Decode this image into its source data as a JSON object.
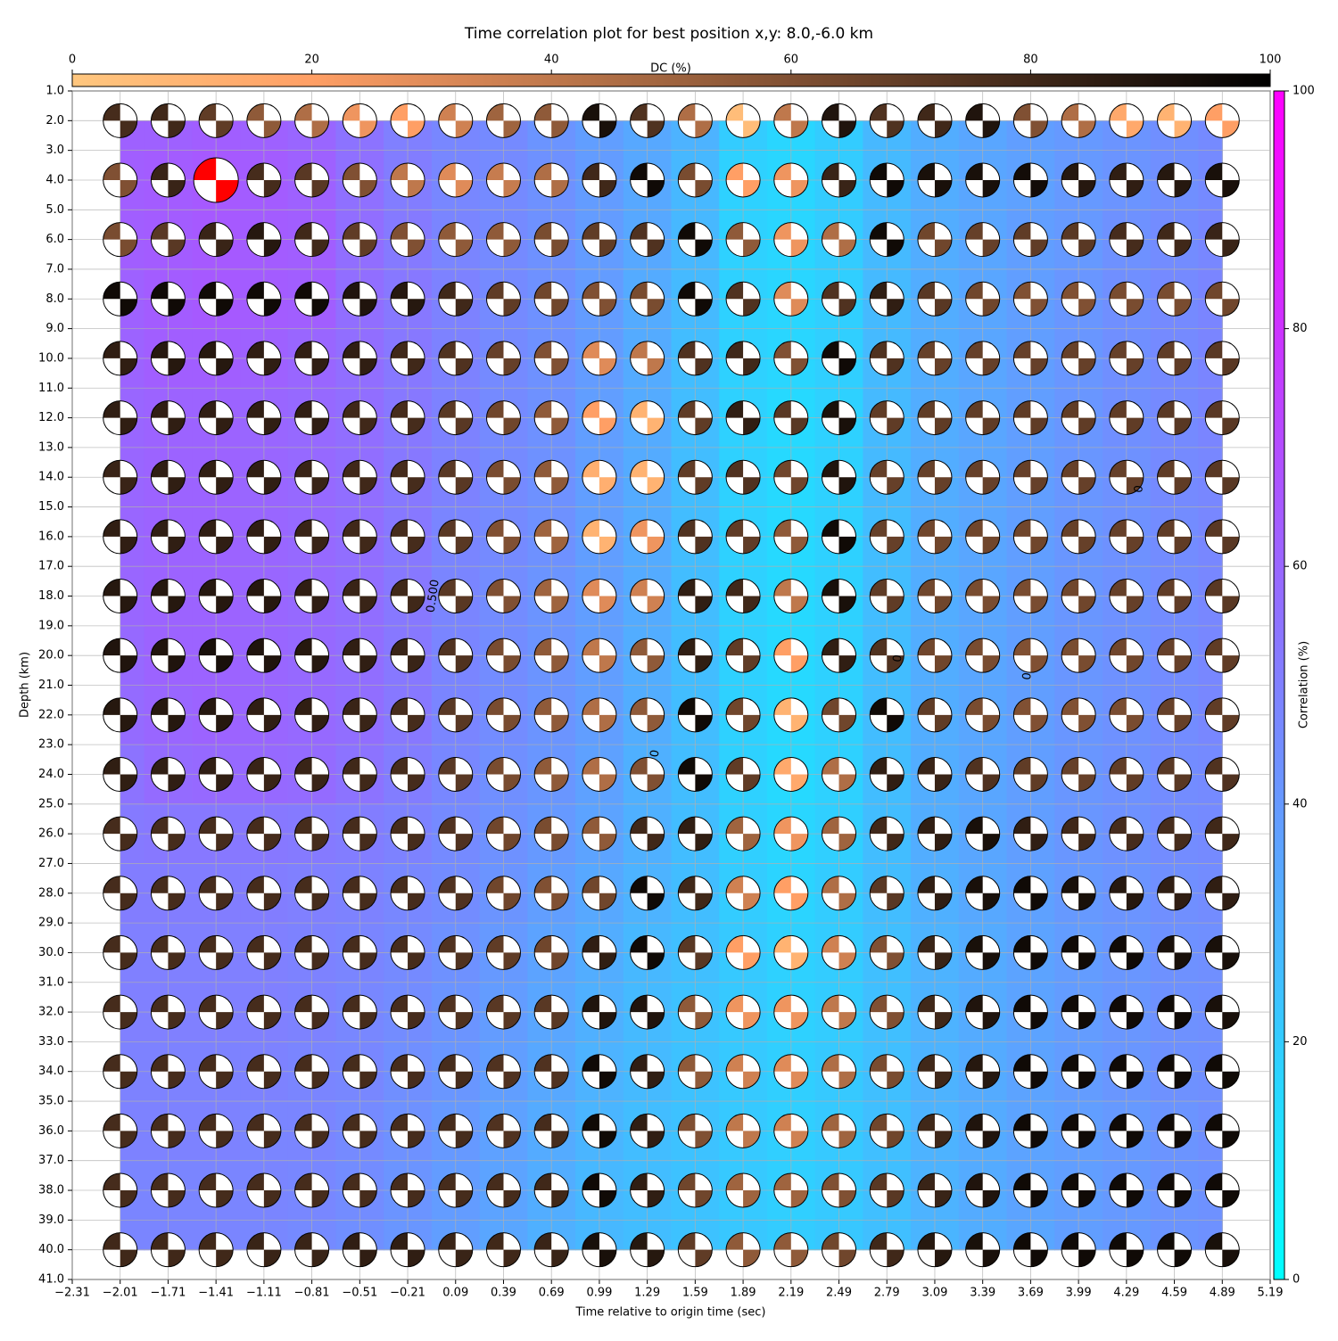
{
  "chart_data": {
    "type": "heatmap",
    "title": "Time correlation plot for best position x,y: 8.0,-6.0 km",
    "xlabel": "Time relative to origin time (sec)",
    "ylabel": "Depth (km)",
    "x": [
      -2.01,
      -1.71,
      -1.41,
      -1.11,
      -0.81,
      -0.51,
      -0.21,
      0.09,
      0.39,
      0.69,
      0.99,
      1.29,
      1.59,
      1.89,
      2.19,
      2.49,
      2.79,
      3.09,
      3.39,
      3.69,
      3.99,
      4.29,
      4.59,
      4.89
    ],
    "y": [
      2,
      4,
      6,
      8,
      10,
      12,
      14,
      16,
      18,
      20,
      22,
      24,
      26,
      28,
      30,
      32,
      34,
      36,
      38,
      40
    ],
    "correlation": [
      [
        62,
        62,
        63,
        62,
        60,
        55,
        50,
        47,
        46,
        42,
        38,
        34,
        30,
        20,
        16,
        20,
        28,
        32,
        35,
        38,
        40,
        42,
        44,
        46
      ],
      [
        63,
        64,
        65,
        64,
        62,
        56,
        51,
        47,
        46,
        43,
        39,
        34,
        28,
        18,
        16,
        20,
        27,
        32,
        35,
        37,
        40,
        42,
        44,
        46
      ],
      [
        63,
        64,
        65,
        64,
        63,
        57,
        52,
        48,
        46,
        43,
        39,
        34,
        28,
        18,
        16,
        20,
        27,
        32,
        35,
        38,
        40,
        43,
        45,
        47
      ],
      [
        62,
        64,
        65,
        64,
        63,
        57,
        53,
        49,
        46,
        43,
        39,
        33,
        27,
        18,
        16,
        19,
        27,
        32,
        35,
        38,
        41,
        44,
        46,
        48
      ],
      [
        61,
        63,
        63,
        62,
        60,
        57,
        53,
        49,
        46,
        43,
        39,
        33,
        26,
        18,
        16,
        19,
        27,
        32,
        35,
        38,
        41,
        44,
        46,
        48
      ],
      [
        60,
        61,
        61,
        60,
        59,
        57,
        53,
        49,
        46,
        43,
        38,
        33,
        26,
        18,
        15,
        18,
        27,
        32,
        35,
        38,
        41,
        44,
        46,
        48
      ],
      [
        60,
        61,
        61,
        60,
        59,
        57,
        53,
        49,
        46,
        43,
        38,
        33,
        26,
        18,
        15,
        18,
        27,
        32,
        35,
        38,
        41,
        43,
        46,
        47
      ],
      [
        60,
        61,
        61,
        60,
        59,
        57,
        53,
        48,
        46,
        43,
        38,
        33,
        26,
        18,
        15,
        18,
        26,
        32,
        35,
        38,
        41,
        43,
        45,
        47
      ],
      [
        60,
        61,
        61,
        60,
        59,
        57,
        53,
        48,
        45,
        42,
        38,
        33,
        26,
        18,
        15,
        18,
        26,
        32,
        35,
        38,
        41,
        43,
        45,
        47
      ],
      [
        59,
        61,
        61,
        60,
        59,
        57,
        53,
        48,
        45,
        42,
        38,
        32,
        26,
        18,
        15,
        18,
        26,
        32,
        35,
        38,
        41,
        43,
        45,
        47
      ],
      [
        58,
        60,
        61,
        60,
        59,
        57,
        53,
        48,
        45,
        42,
        38,
        32,
        26,
        18,
        15,
        18,
        26,
        32,
        35,
        38,
        41,
        43,
        45,
        47
      ],
      [
        55,
        58,
        59,
        59,
        58,
        55,
        51,
        47,
        44,
        41,
        37,
        31,
        26,
        18,
        15,
        18,
        26,
        32,
        35,
        38,
        41,
        43,
        45,
        46
      ],
      [
        52,
        53,
        53,
        53,
        52,
        51,
        49,
        46,
        43,
        40,
        36,
        31,
        26,
        19,
        16,
        19,
        26,
        32,
        35,
        38,
        41,
        43,
        45,
        46
      ],
      [
        51,
        51,
        51,
        51,
        50,
        49,
        47,
        45,
        42,
        38,
        34,
        30,
        26,
        20,
        17,
        20,
        26,
        31,
        34,
        37,
        40,
        42,
        44,
        45
      ],
      [
        50,
        50,
        50,
        50,
        49,
        48,
        46,
        43,
        40,
        36,
        32,
        28,
        25,
        21,
        18,
        20,
        25,
        30,
        33,
        36,
        39,
        41,
        43,
        44
      ],
      [
        50,
        50,
        50,
        50,
        49,
        47,
        45,
        42,
        39,
        35,
        31,
        27,
        24,
        21,
        18,
        20,
        25,
        30,
        33,
        36,
        39,
        41,
        43,
        44
      ],
      [
        49,
        49,
        49,
        49,
        48,
        47,
        44,
        41,
        38,
        34,
        30,
        27,
        24,
        21,
        19,
        21,
        25,
        30,
        33,
        36,
        39,
        41,
        43,
        44
      ],
      [
        49,
        49,
        49,
        48,
        48,
        46,
        43,
        40,
        37,
        33,
        29,
        26,
        24,
        21,
        19,
        21,
        25,
        30,
        33,
        36,
        38,
        40,
        42,
        44
      ],
      [
        48,
        48,
        48,
        48,
        47,
        45,
        42,
        39,
        36,
        32,
        28,
        26,
        24,
        21,
        19,
        21,
        25,
        30,
        33,
        36,
        38,
        40,
        42,
        43
      ],
      [
        48,
        48,
        48,
        47,
        46,
        44,
        41,
        38,
        35,
        31,
        28,
        26,
        24,
        22,
        20,
        22,
        25,
        29,
        32,
        35,
        38,
        40,
        42,
        43
      ]
    ],
    "dc": [
      [
        78,
        80,
        70,
        55,
        45,
        25,
        20,
        35,
        50,
        55,
        92,
        75,
        45,
        5,
        40,
        90,
        75,
        80,
        90,
        60,
        45,
        15,
        10,
        20
      ],
      [
        60,
        82,
        70,
        78,
        72,
        60,
        40,
        30,
        38,
        45,
        80,
        95,
        62,
        20,
        25,
        82,
        95,
        92,
        92,
        94,
        88,
        85,
        88,
        92
      ],
      [
        62,
        72,
        82,
        88,
        80,
        70,
        60,
        55,
        55,
        62,
        70,
        75,
        95,
        55,
        25,
        45,
        95,
        65,
        68,
        70,
        72,
        78,
        80,
        82
      ],
      [
        95,
        95,
        95,
        95,
        95,
        90,
        88,
        80,
        70,
        65,
        60,
        62,
        95,
        75,
        30,
        75,
        85,
        72,
        65,
        60,
        60,
        62,
        62,
        65
      ],
      [
        85,
        88,
        88,
        85,
        85,
        85,
        80,
        75,
        68,
        60,
        30,
        40,
        75,
        80,
        60,
        95,
        75,
        68,
        68,
        68,
        68,
        68,
        70,
        72
      ],
      [
        85,
        85,
        85,
        85,
        85,
        80,
        78,
        72,
        65,
        55,
        20,
        10,
        70,
        85,
        72,
        92,
        70,
        70,
        70,
        70,
        70,
        70,
        72,
        72
      ],
      [
        82,
        85,
        85,
        85,
        82,
        80,
        78,
        72,
        62,
        55,
        12,
        10,
        70,
        75,
        65,
        90,
        68,
        68,
        68,
        68,
        68,
        68,
        70,
        72
      ],
      [
        85,
        85,
        85,
        85,
        82,
        80,
        78,
        72,
        60,
        50,
        10,
        25,
        75,
        70,
        55,
        95,
        68,
        65,
        65,
        65,
        68,
        68,
        70,
        72
      ],
      [
        88,
        88,
        88,
        88,
        85,
        82,
        80,
        72,
        60,
        50,
        30,
        35,
        85,
        80,
        40,
        92,
        70,
        65,
        62,
        62,
        65,
        68,
        70,
        72
      ],
      [
        90,
        90,
        92,
        90,
        88,
        85,
        82,
        75,
        62,
        55,
        40,
        55,
        85,
        70,
        20,
        85,
        75,
        65,
        62,
        60,
        62,
        65,
        68,
        70
      ],
      [
        88,
        88,
        88,
        85,
        85,
        82,
        78,
        72,
        62,
        55,
        45,
        55,
        95,
        65,
        10,
        65,
        95,
        70,
        62,
        60,
        60,
        62,
        68,
        70
      ],
      [
        85,
        85,
        85,
        82,
        82,
        80,
        78,
        72,
        62,
        55,
        45,
        60,
        95,
        70,
        15,
        45,
        85,
        82,
        75,
        70,
        68,
        70,
        72,
        75
      ],
      [
        78,
        78,
        78,
        78,
        78,
        78,
        78,
        75,
        65,
        62,
        55,
        80,
        85,
        50,
        25,
        50,
        80,
        85,
        92,
        85,
        80,
        78,
        78,
        80
      ],
      [
        78,
        78,
        78,
        78,
        78,
        78,
        78,
        75,
        65,
        60,
        65,
        95,
        80,
        35,
        20,
        45,
        72,
        85,
        92,
        95,
        92,
        88,
        85,
        85
      ],
      [
        78,
        78,
        78,
        78,
        78,
        78,
        78,
        75,
        70,
        65,
        85,
        95,
        72,
        20,
        10,
        35,
        60,
        82,
        92,
        95,
        95,
        95,
        92,
        92
      ],
      [
        78,
        78,
        78,
        78,
        78,
        78,
        78,
        75,
        72,
        72,
        90,
        90,
        55,
        25,
        25,
        40,
        60,
        80,
        90,
        95,
        95,
        95,
        95,
        92
      ],
      [
        78,
        78,
        78,
        78,
        78,
        78,
        78,
        78,
        75,
        75,
        95,
        85,
        55,
        35,
        30,
        45,
        62,
        80,
        88,
        95,
        95,
        95,
        95,
        95
      ],
      [
        78,
        78,
        78,
        78,
        78,
        78,
        78,
        78,
        75,
        78,
        95,
        85,
        60,
        40,
        35,
        50,
        65,
        80,
        90,
        95,
        95,
        95,
        95,
        95
      ],
      [
        78,
        78,
        78,
        78,
        78,
        78,
        78,
        78,
        78,
        80,
        95,
        85,
        65,
        50,
        50,
        60,
        72,
        82,
        90,
        95,
        95,
        95,
        95,
        95
      ],
      [
        80,
        80,
        80,
        82,
        82,
        85,
        85,
        82,
        80,
        82,
        92,
        88,
        70,
        55,
        55,
        65,
        80,
        88,
        92,
        95,
        95,
        95,
        95,
        92
      ]
    ],
    "best": {
      "x": -1.41,
      "y": 4,
      "color": "#ff0000"
    },
    "xlim": [
      -2.31,
      5.19
    ],
    "ylim": [
      1,
      41
    ],
    "y_inverted": true,
    "xticks": [
      {
        "value": -2.31,
        "label": "−2.31"
      },
      {
        "value": -2.01,
        "label": "−2.01"
      },
      {
        "value": -1.71,
        "label": "−1.71"
      },
      {
        "value": -1.41,
        "label": "−1.41"
      },
      {
        "value": -1.11,
        "label": "−1.11"
      },
      {
        "value": -0.81,
        "label": "−0.81"
      },
      {
        "value": -0.51,
        "label": "−0.51"
      },
      {
        "value": -0.21,
        "label": "−0.21"
      },
      0.09,
      0.39,
      0.69,
      0.99,
      1.29,
      1.59,
      1.89,
      2.19,
      2.49,
      2.79,
      3.09,
      3.39,
      3.69,
      3.99,
      4.29,
      4.59,
      4.89,
      5.19
    ],
    "yticks": [
      {
        "value": 1,
        "label": "1.0"
      },
      {
        "value": 2,
        "label": "2.0"
      },
      {
        "value": 3,
        "label": "3.0"
      },
      {
        "value": 4,
        "label": "4.0"
      },
      {
        "value": 5,
        "label": "5.0"
      },
      {
        "value": 6,
        "label": "6.0"
      },
      {
        "value": 7,
        "label": "7.0"
      },
      {
        "value": 8,
        "label": "8.0"
      },
      {
        "value": 9,
        "label": "9.0"
      },
      {
        "value": 10,
        "label": "10.0"
      },
      {
        "value": 11,
        "label": "11.0"
      },
      {
        "value": 12,
        "label": "12.0"
      },
      {
        "value": 13,
        "label": "13.0"
      },
      {
        "value": 14,
        "label": "14.0"
      },
      {
        "value": 15,
        "label": "15.0"
      },
      {
        "value": 16,
        "label": "16.0"
      },
      {
        "value": 17,
        "label": "17.0"
      },
      {
        "value": 18,
        "label": "18.0"
      },
      {
        "value": 19,
        "label": "19.0"
      },
      {
        "value": 20,
        "label": "20.0"
      },
      {
        "value": 21,
        "label": "21.0"
      },
      {
        "value": 22,
        "label": "22.0"
      },
      {
        "value": 23,
        "label": "23.0"
      },
      {
        "value": 24,
        "label": "24.0"
      },
      {
        "value": 25,
        "label": "25.0"
      },
      {
        "value": 26,
        "label": "26.0"
      },
      {
        "value": 27,
        "label": "27.0"
      },
      {
        "value": 28,
        "label": "28.0"
      },
      {
        "value": 29,
        "label": "29.0"
      },
      {
        "value": 30,
        "label": "30.0"
      },
      {
        "value": 31,
        "label": "31.0"
      },
      {
        "value": 32,
        "label": "32.0"
      },
      {
        "value": 33,
        "label": "33.0"
      },
      {
        "value": 34,
        "label": "34.0"
      },
      {
        "value": 35,
        "label": "35.0"
      },
      {
        "value": 36,
        "label": "36.0"
      },
      {
        "value": 37,
        "label": "37.0"
      },
      {
        "value": 38,
        "label": "38.0"
      },
      {
        "value": 39,
        "label": "39.0"
      },
      {
        "value": 40,
        "label": "40.0"
      },
      {
        "value": 41,
        "label": "41.0"
      }
    ],
    "grid": true,
    "colorbar": {
      "label": "Correlation (%)",
      "lim": [
        0,
        100
      ],
      "ticks": [
        0,
        20,
        40,
        60,
        80,
        100
      ],
      "cmap": "cool"
    },
    "dc_colorbar": {
      "label": "DC (%)",
      "lim": [
        0,
        100
      ],
      "ticks": [
        0,
        20,
        40,
        60,
        80,
        100
      ],
      "cmap": "copper_r"
    },
    "annotations": [
      {
        "text": "0.500",
        "x": -0.05,
        "y": 18.0
      },
      {
        "text": "0",
        "x": 1.34,
        "y": 23.3
      },
      {
        "text": "0",
        "x": 2.86,
        "y": 20.1
      },
      {
        "text": "0",
        "x": 3.67,
        "y": 20.7
      },
      {
        "text": "0",
        "x": 4.37,
        "y": 14.4
      }
    ]
  }
}
